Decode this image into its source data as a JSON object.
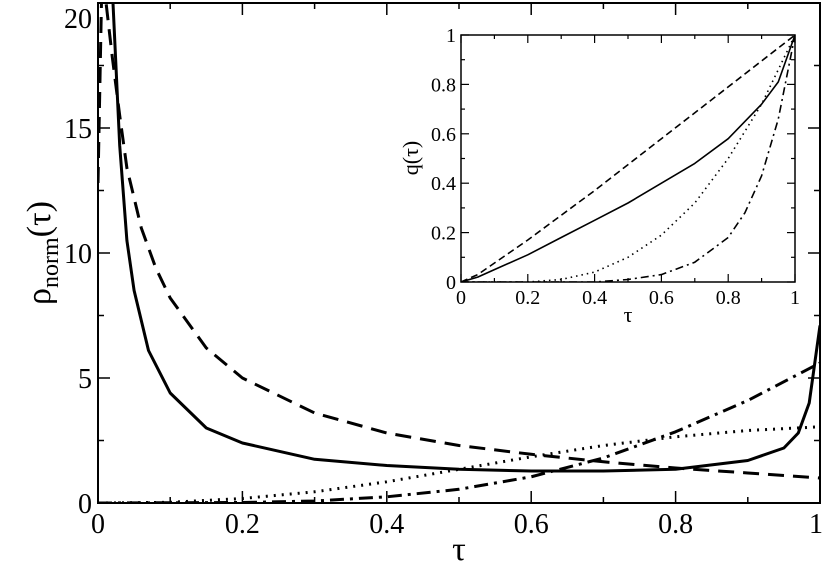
{
  "chart_data": [
    {
      "type": "line",
      "panel": "main",
      "xlabel": "τ",
      "ylabel": "ρ",
      "ylabel_sub": "norm",
      "ylabel_arg": "(τ)",
      "xlim": [
        0,
        1
      ],
      "ylim": [
        0,
        20
      ],
      "xticks": [
        0,
        0.2,
        0.4,
        0.6,
        0.8,
        1
      ],
      "xtick_labels": [
        "0",
        "0.2",
        "0.4",
        "0.6",
        "0.8",
        "1"
      ],
      "yticks": [
        0,
        5,
        10,
        15,
        20
      ],
      "ytick_labels": [
        "0",
        "5",
        "10",
        "15",
        "20"
      ],
      "grid": false,
      "series": [
        {
          "style": "solid",
          "x": [
            0.02,
            0.03,
            0.04,
            0.05,
            0.07,
            0.1,
            0.15,
            0.2,
            0.3,
            0.4,
            0.5,
            0.6,
            0.7,
            0.8,
            0.9,
            0.95,
            0.97,
            0.985,
            1.0
          ],
          "y": [
            20.5,
            14.3,
            10.5,
            8.5,
            6.1,
            4.4,
            3.0,
            2.4,
            1.75,
            1.5,
            1.35,
            1.28,
            1.28,
            1.35,
            1.7,
            2.2,
            2.8,
            4.0,
            7.1
          ]
        },
        {
          "style": "dashed",
          "x": [
            0.0,
            0.005,
            0.01,
            0.02,
            0.03,
            0.04,
            0.06,
            0.08,
            0.1,
            0.15,
            0.2,
            0.3,
            0.4,
            0.5,
            0.6,
            0.7,
            0.8,
            0.9,
            1.0
          ],
          "y": [
            12.8,
            20.3,
            20.3,
            17.8,
            15.5,
            13.4,
            11.0,
            9.4,
            8.2,
            6.2,
            5.0,
            3.6,
            2.8,
            2.3,
            1.95,
            1.65,
            1.4,
            1.2,
            1.0
          ]
        },
        {
          "style": "dotted",
          "x": [
            0.0,
            0.1,
            0.2,
            0.3,
            0.4,
            0.5,
            0.6,
            0.7,
            0.8,
            0.9,
            1.0
          ],
          "y": [
            0.0,
            0.03,
            0.18,
            0.45,
            0.85,
            1.35,
            1.85,
            2.3,
            2.65,
            2.9,
            3.05
          ]
        },
        {
          "style": "dash-dot",
          "x": [
            0.0,
            0.2,
            0.3,
            0.4,
            0.5,
            0.6,
            0.7,
            0.8,
            0.9,
            1.0
          ],
          "y": [
            0.0,
            0.02,
            0.08,
            0.25,
            0.55,
            1.05,
            1.8,
            2.85,
            4.1,
            5.6
          ]
        }
      ]
    },
    {
      "type": "line",
      "panel": "inset",
      "xlabel": "τ",
      "ylabel": "q(τ)",
      "xlim": [
        0,
        1
      ],
      "ylim": [
        0,
        1
      ],
      "xticks": [
        0,
        0.2,
        0.4,
        0.6,
        0.8,
        1
      ],
      "xtick_labels": [
        "0",
        "0.2",
        "0.4",
        "0.6",
        "0.8",
        "1"
      ],
      "yticks": [
        0,
        0.2,
        0.4,
        0.6,
        0.8,
        1
      ],
      "ytick_labels": [
        "0",
        "0.2",
        "0.4",
        "0.6",
        "0.8",
        "1"
      ],
      "grid": false,
      "series": [
        {
          "style": "solid",
          "x": [
            0.0,
            0.05,
            0.1,
            0.2,
            0.3,
            0.4,
            0.5,
            0.6,
            0.7,
            0.8,
            0.9,
            0.95,
            1.0
          ],
          "y": [
            0.0,
            0.02,
            0.05,
            0.11,
            0.18,
            0.25,
            0.32,
            0.4,
            0.48,
            0.58,
            0.72,
            0.81,
            1.0
          ]
        },
        {
          "style": "dashed",
          "x": [
            0.0,
            0.05,
            0.2,
            0.4,
            0.6,
            0.8,
            1.0
          ],
          "y": [
            0.0,
            0.03,
            0.17,
            0.37,
            0.58,
            0.79,
            1.0
          ]
        },
        {
          "style": "dotted",
          "x": [
            0.0,
            0.2,
            0.3,
            0.4,
            0.5,
            0.6,
            0.7,
            0.8,
            0.9,
            1.0
          ],
          "y": [
            0.0,
            0.0,
            0.01,
            0.04,
            0.1,
            0.19,
            0.32,
            0.5,
            0.72,
            1.0
          ]
        },
        {
          "style": "dash-dot",
          "x": [
            0.0,
            0.4,
            0.5,
            0.6,
            0.7,
            0.8,
            0.85,
            0.9,
            0.95,
            1.0
          ],
          "y": [
            0.0,
            0.0,
            0.01,
            0.03,
            0.08,
            0.18,
            0.28,
            0.43,
            0.66,
            1.0
          ]
        }
      ]
    }
  ]
}
